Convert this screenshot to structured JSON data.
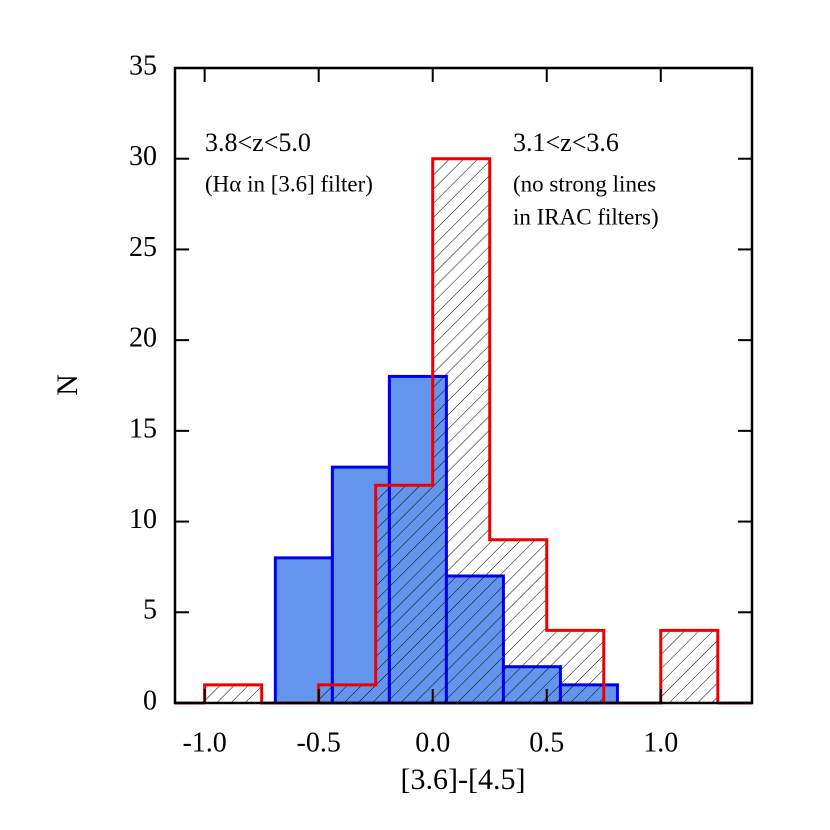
{
  "chart_data": {
    "type": "histogram",
    "xlabel": "[3.6]-[4.5]",
    "ylabel": "N",
    "xlim": [
      -1.13,
      1.4
    ],
    "ylim": [
      0,
      35
    ],
    "xticks": [
      {
        "value": -1.0,
        "label": "-1.0"
      },
      {
        "value": -0.5,
        "label": "-0.5"
      },
      {
        "value": 0.0,
        "label": "0.0"
      },
      {
        "value": 0.5,
        "label": "0.5"
      },
      {
        "value": 1.0,
        "label": "1.0"
      }
    ],
    "yticks": [
      0,
      5,
      10,
      15,
      20,
      25,
      30,
      35
    ],
    "annotations": [
      "3.8<z<5.0",
      "(Hα in [3.6] filter)",
      "3.1<z<3.6",
      "(no strong lines",
      "in IRAC filters)"
    ],
    "series": [
      {
        "color": "#6495ed",
        "edgecolor": "#0000ee",
        "fill": "solid",
        "bins": [
          -0.69,
          -0.44,
          -0.19,
          0.06,
          0.31,
          0.56,
          0.81
        ],
        "values": [
          8,
          13,
          18,
          7,
          2,
          1
        ]
      },
      {
        "color": "#000000",
        "edgecolor": "#ee0000",
        "fill": "hatch",
        "bins": [
          -1.0,
          -0.75,
          -0.5,
          -0.25,
          0.0,
          0.25,
          0.5,
          0.75,
          1.0,
          1.25
        ],
        "values": [
          1,
          0,
          1,
          12,
          30,
          9,
          4,
          0,
          4
        ]
      }
    ]
  }
}
